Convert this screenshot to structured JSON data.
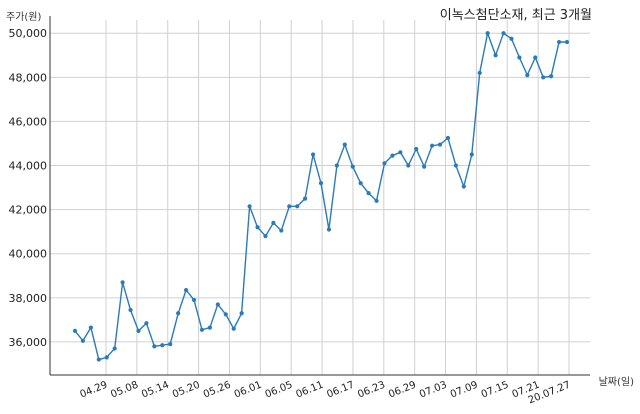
{
  "chart_data": {
    "type": "line",
    "title": "이녹스첨단소재, 최근 3개월",
    "ylabel": "주가(원)",
    "xlabel": "날짜(일)",
    "ylim": [
      34500,
      50600
    ],
    "yticks": [
      36000,
      38000,
      40000,
      42000,
      44000,
      46000,
      48000,
      50000
    ],
    "ytick_labels": [
      "36,000",
      "38,000",
      "40,000",
      "42,000",
      "44,000",
      "46,000",
      "48,000",
      "50,000"
    ],
    "xtick_labels": [
      "04.29",
      "05.08",
      "05.14",
      "05.20",
      "05.26",
      "06.01",
      "06.05",
      "06.11",
      "06.17",
      "06.23",
      "06.29",
      "07.03",
      "07.09",
      "07.15",
      "07.21",
      "20.07.27"
    ],
    "grid": true,
    "line_color": "#2b7bb9",
    "series": [
      {
        "values": [
          36500,
          36050,
          36650,
          35200,
          35300,
          35700,
          38700,
          37450,
          36500,
          36850,
          35800,
          35850,
          35900,
          37300,
          38350,
          37900,
          36550,
          36650,
          37700,
          37250,
          36600,
          37300,
          42150,
          41200,
          40800,
          41400,
          41050,
          42150,
          42150,
          42500,
          44500,
          43200,
          41100,
          44000,
          44950,
          43950,
          43200,
          42750,
          42400,
          44100,
          44450,
          44600,
          44000,
          44750,
          43950,
          44900,
          44950,
          45250,
          44000,
          43050,
          44500,
          48200,
          50000,
          49000,
          50000,
          49750,
          48900,
          48100,
          48900,
          48000,
          48050,
          49600,
          49600
        ]
      }
    ]
  }
}
